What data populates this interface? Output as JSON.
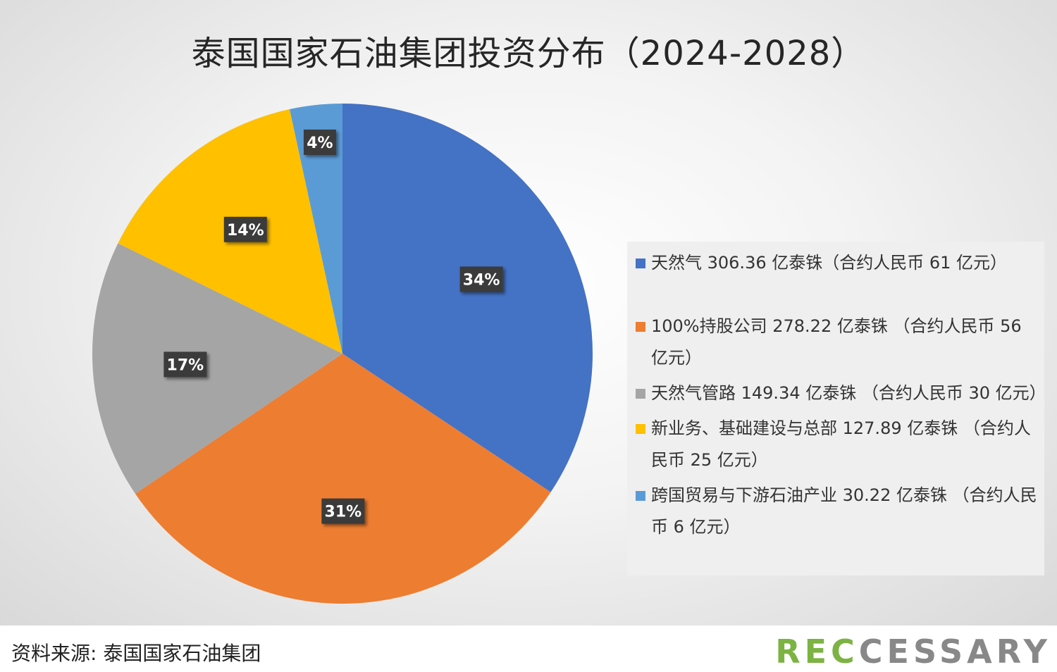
{
  "chart_data": {
    "type": "pie",
    "title": "泰国国家石油集团投资分布（2024-2028）",
    "categories": [
      "天然气 306.36 亿泰铢（合约人民币 61 亿元）",
      "100%持股公司 278.22 亿泰铢 （合约人民币 56 亿元）",
      "天然气管路 149.34 亿泰铢 （合约人民币 30 亿元）",
      "新业务、基础建设与总部 127.89 亿泰铢 （合约人民币 25 亿元）",
      "跨国贸易与下游石油产业 30.22 亿泰铢 （合约人民币 6 亿元）"
    ],
    "values": [
      306.36,
      278.22,
      149.34,
      127.89,
      30.22
    ],
    "percent_labels": [
      "34%",
      "31%",
      "17%",
      "14%",
      "4%"
    ],
    "colors": [
      "#4472c4",
      "#ed7d31",
      "#a5a5a5",
      "#ffc000",
      "#5b9bd5"
    ],
    "legend_position": "right"
  },
  "footer": {
    "source": "资料来源: 泰国国家石油集团",
    "logo": {
      "part1": "REC",
      "part2": "CESSARY"
    }
  }
}
